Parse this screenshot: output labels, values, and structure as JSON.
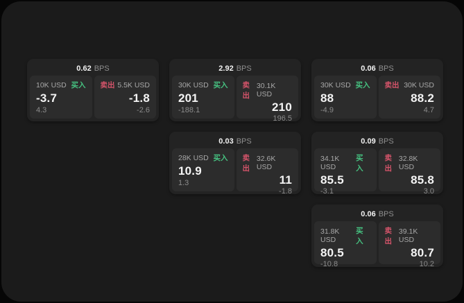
{
  "app": {
    "buy_label": "买入",
    "sell_label": "卖出",
    "unit_label": "BPS"
  },
  "colors": {
    "buy_green": "#46c281",
    "sell_red": "#d4546a",
    "panel_bg": "#1b1b1b",
    "card_bg": "#232323",
    "tile_bg": "#2c2c2c"
  },
  "cards": [
    {
      "bps": "0.62",
      "unit": "BPS",
      "buy": {
        "size": "10K USD",
        "label": "买入",
        "price": "-3.7",
        "delta": "4.3"
      },
      "sell": {
        "label": "卖出",
        "size": "5.5K USD",
        "price": "-1.8",
        "delta": "-2.6"
      }
    },
    {
      "bps": "2.92",
      "unit": "BPS",
      "buy": {
        "size": "30K USD",
        "label": "买入",
        "price": "201",
        "delta": "-188.1"
      },
      "sell": {
        "label": "卖出",
        "size": "30.1K USD",
        "price": "210",
        "delta": "196.5"
      }
    },
    {
      "bps": "0.06",
      "unit": "BPS",
      "buy": {
        "size": "30K USD",
        "label": "买入",
        "price": "88",
        "delta": "-4.9"
      },
      "sell": {
        "label": "卖出",
        "size": "30K USD",
        "price": "88.2",
        "delta": "4.7"
      }
    },
    {
      "bps": "0.03",
      "unit": "BPS",
      "buy": {
        "size": "28K USD",
        "label": "买入",
        "price": "10.9",
        "delta": "1.3"
      },
      "sell": {
        "label": "卖出",
        "size": "32.6K USD",
        "price": "11",
        "delta": "-1.8"
      }
    },
    {
      "bps": "0.09",
      "unit": "BPS",
      "buy": {
        "size": "34.1K USD",
        "label": "买入",
        "price": "85.5",
        "delta": "-3.1"
      },
      "sell": {
        "label": "卖出",
        "size": "32.8K USD",
        "price": "85.8",
        "delta": "3.0"
      }
    },
    {
      "bps": "0.06",
      "unit": "BPS",
      "buy": {
        "size": "31.8K USD",
        "label": "买入",
        "price": "80.5",
        "delta": "-10.8"
      },
      "sell": {
        "label": "卖出",
        "size": "39.1K USD",
        "price": "80.7",
        "delta": "10.2"
      }
    }
  ]
}
